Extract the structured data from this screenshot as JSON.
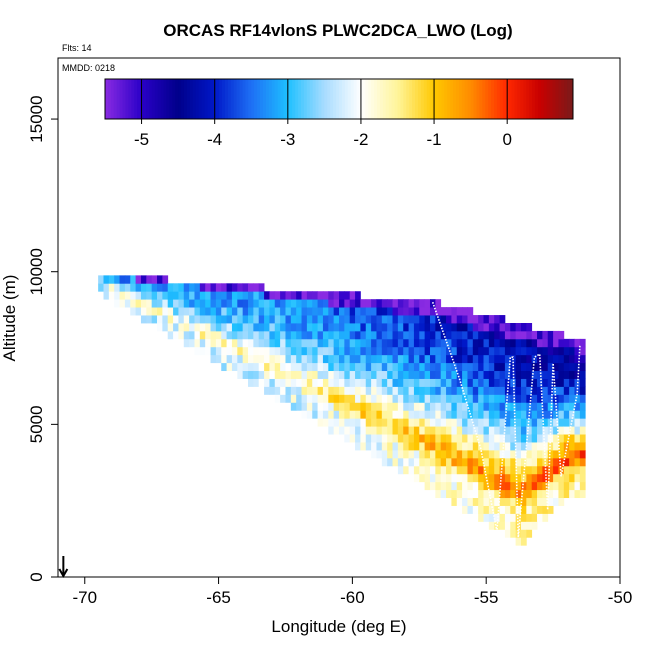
{
  "chart_data": {
    "type": "heatmap",
    "title": "ORCAS RF14vlonS PLWC2DCA_LWO (Log)",
    "subtitle_flights": "Flts: 14",
    "subtitle_date": "MMDD: 0218",
    "xlabel": "Longitude (deg E)",
    "ylabel": "Altitude (m)",
    "xlim": [
      -71,
      -50
    ],
    "ylim": [
      0,
      17000
    ],
    "xticks": [
      -70,
      -65,
      -60,
      -55,
      -50
    ],
    "xtick_labels": [
      "-70",
      "-65",
      "-60",
      "-55",
      "-50"
    ],
    "yticks": [
      0,
      5000,
      10000,
      15000
    ],
    "ytick_labels": [
      "0",
      "5000",
      "10000",
      "15000"
    ],
    "colorbar": {
      "range": [
        -5.5,
        0.9
      ],
      "ticks": [
        -5,
        -4,
        -3,
        -2,
        -1,
        0
      ],
      "tick_labels": [
        "-5",
        "-4",
        "-3",
        "-2",
        "-1",
        "0"
      ],
      "color_stops": [
        {
          "v": -5.5,
          "c": "#8a2be2"
        },
        {
          "v": -5.0,
          "c": "#2a00c8"
        },
        {
          "v": -4.5,
          "c": "#00008b"
        },
        {
          "v": -4.0,
          "c": "#0018c8"
        },
        {
          "v": -3.5,
          "c": "#1e6ff5"
        },
        {
          "v": -3.0,
          "c": "#1ec0ff"
        },
        {
          "v": -2.5,
          "c": "#a8dcff"
        },
        {
          "v": -2.0,
          "c": "#ffffff"
        },
        {
          "v": -1.5,
          "c": "#fff59a"
        },
        {
          "v": -1.0,
          "c": "#ffc800"
        },
        {
          "v": -0.5,
          "c": "#ff8c00"
        },
        {
          "v": 0.0,
          "c": "#ff2800"
        },
        {
          "v": 0.45,
          "c": "#c80000"
        },
        {
          "v": 0.9,
          "c": "#7a1a1a"
        }
      ]
    },
    "field_model": {
      "domain_lon": [
        -69.5,
        -51.3
      ],
      "top_alt": {
        "lon": [
          -69.5,
          -57.0,
          -51.3
        ],
        "alt": [
          9800,
          8900,
          7600
        ]
      },
      "bottom_alt": {
        "lon": [
          -69.5,
          -53.8,
          -52.0
        ],
        "alt": [
          9400,
          1200,
          2800
        ]
      },
      "layers": [
        {
          "frac": 0.0,
          "v": -5.3
        },
        {
          "frac": 0.1,
          "v": -4.6
        },
        {
          "frac": 0.28,
          "v": -4.2
        },
        {
          "frac": 0.45,
          "v": -3.3
        },
        {
          "frac": 0.58,
          "v": -2.4
        },
        {
          "frac": 0.68,
          "v": -1.2
        },
        {
          "frac": 0.8,
          "v": 0.1
        },
        {
          "frac": 0.88,
          "v": -1.3
        },
        {
          "frac": 1.0,
          "v": -1.6
        }
      ],
      "west_value": -2.6,
      "east_weight_start_lon": -63.0
    },
    "flight_track": {
      "lon": [
        -57.0,
        -56.0,
        -55.2,
        -54.6,
        -54.1,
        -54.0,
        -53.8,
        -53.2,
        -53.0,
        -52.7,
        -52.5,
        -52.2,
        -51.6,
        -51.5
      ],
      "alt": [
        9000,
        6500,
        4200,
        1500,
        7200,
        7200,
        1300,
        7200,
        7300,
        2200,
        7000,
        3300,
        6000,
        7600
      ]
    },
    "arrow_marker": {
      "lon": -70.8,
      "alt": 0
    }
  }
}
